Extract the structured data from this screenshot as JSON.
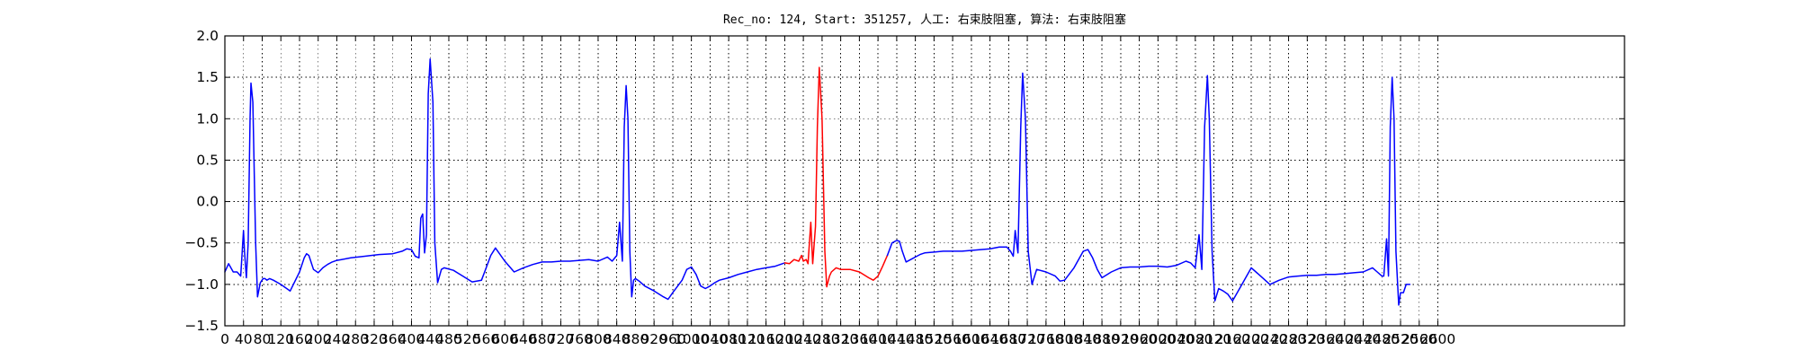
{
  "chart_data": {
    "type": "line",
    "title": "Rec_no: 124, Start: 351257, 人工: 右束肢阻塞, 算法: 右束肢阻塞",
    "xlabel": "",
    "ylabel": "",
    "xlim": [
      0,
      3000
    ],
    "ylim": [
      -1.5,
      2.0
    ],
    "grid": true,
    "x_ticks": [
      0,
      40,
      80,
      120,
      160,
      200,
      240,
      280,
      320,
      360,
      400,
      440,
      480,
      520,
      560,
      600,
      640,
      680,
      720,
      760,
      800,
      840,
      880,
      920,
      960,
      1000,
      1040,
      1080,
      1120,
      1160,
      1200,
      1240,
      1280,
      1320,
      1360,
      1400,
      1440,
      1480,
      1520,
      1560,
      1600,
      1640,
      1680,
      1720,
      1760,
      1800,
      1840,
      1880,
      1920,
      1960,
      2000,
      2040,
      2080,
      2120,
      2160,
      2200,
      2240,
      2280,
      2320,
      2360,
      2400,
      2440,
      2480,
      2520,
      2560,
      2600
    ],
    "y_ticks": [
      -1.5,
      -1.0,
      -0.5,
      0.0,
      0.5,
      1.0,
      1.5,
      2.0
    ],
    "y_tick_labels": [
      "−1.5",
      "−1.0",
      "−0.5",
      "0.0",
      "0.5",
      "1.0",
      "1.5",
      "2.0"
    ],
    "x_tick_labels": [
      "0",
      "40",
      "80",
      "120",
      "160",
      "200",
      "240",
      "280",
      "320",
      "360",
      "400",
      "440",
      "480",
      "520",
      "560",
      "600",
      "640",
      "680",
      "720",
      "760",
      "800",
      "840",
      "880",
      "920",
      "960",
      "1000",
      "1040",
      "1080",
      "1120",
      "1160",
      "1200",
      "1240",
      "1280",
      "1320",
      "1360",
      "1400",
      "1440",
      "1480",
      "1520",
      "1560",
      "1600",
      "1640",
      "1680",
      "1720",
      "1760",
      "1800",
      "1840",
      "1880",
      "1920",
      "1960",
      "2000",
      "2040",
      "2080",
      "2120",
      "2160",
      "2200",
      "2240",
      "2280",
      "2320",
      "2360",
      "2400",
      "2440",
      "2480",
      "2520",
      "2560",
      "2600"
    ],
    "colors": {
      "series": "#0000ff",
      "highlight": "#ff0000",
      "background": "#ffffff",
      "axes": "#000000"
    },
    "series": [
      {
        "color": "#0000ff",
        "segment": "ecg-before",
        "x": [
          0,
          8,
          18,
          26,
          34,
          40,
          42,
          46,
          50,
          54,
          56,
          60,
          66,
          70,
          76,
          82,
          86,
          90,
          96,
          104,
          120,
          140,
          160,
          170,
          175,
          180,
          190,
          200,
          210,
          220,
          230,
          240,
          250,
          270,
          300,
          330,
          360,
          380,
          390,
          400,
          408,
          416,
          420,
          424,
          428,
          432,
          436,
          440,
          446,
          450,
          456,
          464,
          470,
          490,
          510,
          530,
          550,
          560,
          570,
          580,
          600,
          620,
          640,
          660,
          680,
          700,
          720,
          740,
          760,
          780,
          800,
          820,
          830,
          840,
          846,
          852,
          856,
          860,
          864,
          868,
          872,
          876,
          880,
          888,
          900,
          920,
          940,
          950,
          960,
          980,
          990,
          1000,
          1010,
          1020,
          1030,
          1040,
          1050,
          1060,
          1080,
          1100,
          1120,
          1140,
          1160,
          1180,
          1200
        ],
        "y": [
          -0.85,
          -0.75,
          -0.85,
          -0.85,
          -0.9,
          -0.35,
          -0.6,
          -0.92,
          -0.5,
          1.0,
          1.43,
          1.2,
          -0.5,
          -1.15,
          -0.98,
          -0.93,
          -0.93,
          -0.95,
          -0.93,
          -0.95,
          -1.0,
          -1.08,
          -0.85,
          -0.68,
          -0.63,
          -0.65,
          -0.82,
          -0.86,
          -0.8,
          -0.76,
          -0.73,
          -0.71,
          -0.7,
          -0.68,
          -0.66,
          -0.64,
          -0.63,
          -0.6,
          -0.57,
          -0.58,
          -0.66,
          -0.68,
          -0.2,
          -0.15,
          -0.62,
          -0.4,
          1.3,
          1.72,
          1.2,
          -0.5,
          -0.98,
          -0.82,
          -0.8,
          -0.83,
          -0.9,
          -0.97,
          -0.95,
          -0.8,
          -0.65,
          -0.56,
          -0.72,
          -0.85,
          -0.8,
          -0.76,
          -0.73,
          -0.73,
          -0.72,
          -0.72,
          -0.71,
          -0.7,
          -0.72,
          -0.67,
          -0.72,
          -0.65,
          -0.25,
          -0.72,
          0.9,
          1.4,
          1.0,
          -0.6,
          -1.15,
          -0.95,
          -0.93,
          -0.96,
          -1.02,
          -1.08,
          -1.15,
          -1.18,
          -1.1,
          -0.95,
          -0.82,
          -0.79,
          -0.88,
          -1.02,
          -1.05,
          -1.02,
          -0.98,
          -0.95,
          -0.92,
          -0.88,
          -0.85,
          -0.82,
          -0.8,
          -0.78,
          -0.74
        ]
      },
      {
        "color": "#ff0000",
        "segment": "ecg-highlighted",
        "x": [
          1200,
          1210,
          1220,
          1230,
          1236,
          1240,
          1246,
          1250,
          1256,
          1260,
          1266,
          1270,
          1274,
          1280,
          1286,
          1290,
          1296,
          1300,
          1310,
          1320,
          1340,
          1360,
          1380,
          1390,
          1400,
          1410,
          1420
        ],
        "y": [
          -0.74,
          -0.75,
          -0.7,
          -0.72,
          -0.65,
          -0.72,
          -0.7,
          -0.75,
          -0.25,
          -0.75,
          -0.3,
          0.9,
          1.62,
          1.0,
          -0.6,
          -1.03,
          -0.9,
          -0.85,
          -0.8,
          -0.82,
          -0.82,
          -0.85,
          -0.92,
          -0.95,
          -0.9,
          -0.78,
          -0.65
        ]
      },
      {
        "color": "#0000ff",
        "segment": "ecg-after",
        "x": [
          1420,
          1430,
          1440,
          1446,
          1452,
          1460,
          1470,
          1480,
          1490,
          1500,
          1520,
          1540,
          1560,
          1580,
          1600,
          1620,
          1640,
          1660,
          1676,
          1684,
          1690,
          1694,
          1700,
          1706,
          1710,
          1716,
          1722,
          1730,
          1740,
          1760,
          1780,
          1790,
          1800,
          1820,
          1840,
          1850,
          1860,
          1870,
          1880,
          1900,
          1920,
          1940,
          1960,
          1980,
          2000,
          2020,
          2040,
          2060,
          2070,
          2080,
          2088,
          2094,
          2100,
          2106,
          2110,
          2116,
          2122,
          2130,
          2140,
          2150,
          2160,
          2180,
          2200,
          2220,
          2240,
          2260,
          2280,
          2300,
          2320,
          2340,
          2360,
          2380,
          2400,
          2420,
          2440,
          2460,
          2470,
          2480,
          2484,
          2490,
          2494,
          2498,
          2502,
          2506,
          2510,
          2516,
          2520,
          2526,
          2532,
          2540
        ],
        "y": [
          -0.65,
          -0.5,
          -0.47,
          -0.48,
          -0.6,
          -0.73,
          -0.7,
          -0.67,
          -0.64,
          -0.62,
          -0.61,
          -0.6,
          -0.6,
          -0.6,
          -0.59,
          -0.58,
          -0.57,
          -0.55,
          -0.55,
          -0.6,
          -0.66,
          -0.35,
          -0.62,
          0.9,
          1.55,
          1.0,
          -0.6,
          -1.0,
          -0.82,
          -0.85,
          -0.9,
          -0.96,
          -0.95,
          -0.8,
          -0.6,
          -0.58,
          -0.68,
          -0.82,
          -0.92,
          -0.85,
          -0.8,
          -0.79,
          -0.79,
          -0.78,
          -0.78,
          -0.79,
          -0.77,
          -0.72,
          -0.74,
          -0.8,
          -0.4,
          -0.82,
          0.9,
          1.52,
          1.0,
          -0.6,
          -1.2,
          -1.05,
          -1.08,
          -1.12,
          -1.2,
          -1.0,
          -0.8,
          -0.9,
          -1.0,
          -0.95,
          -0.91,
          -0.9,
          -0.89,
          -0.89,
          -0.88,
          -0.88,
          -0.87,
          -0.86,
          -0.85,
          -0.8,
          -0.85,
          -0.9,
          -0.9,
          -0.45,
          -0.9,
          0.9,
          1.5,
          1.0,
          -0.6,
          -1.25,
          -1.1,
          -1.1,
          -1.0,
          -1.0
        ]
      }
    ]
  }
}
